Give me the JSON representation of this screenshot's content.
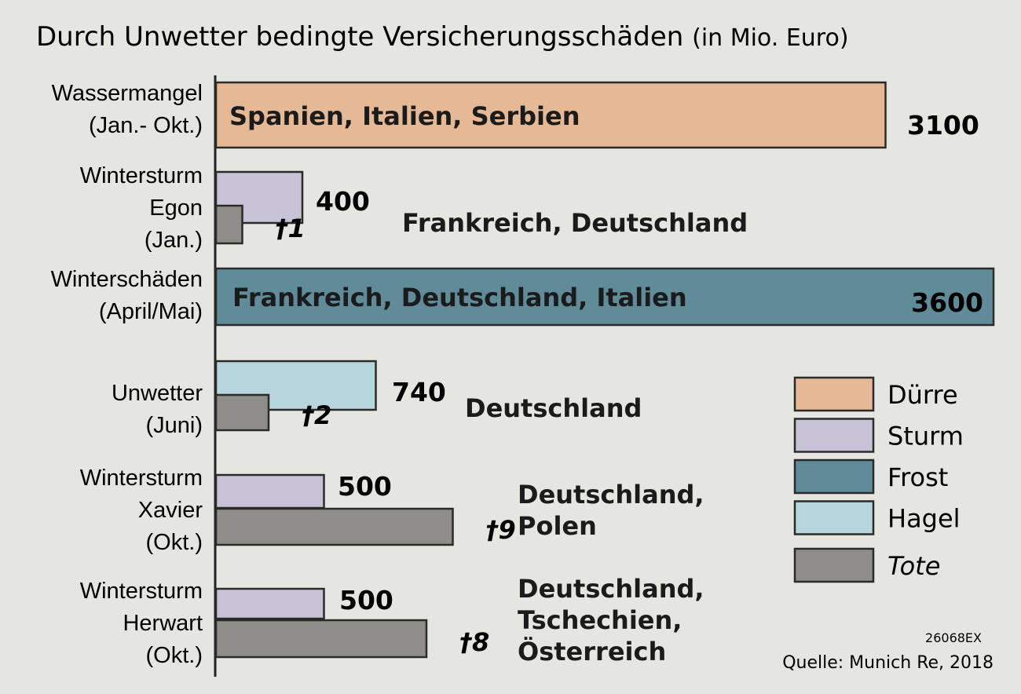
{
  "chart_data": {
    "type": "bar",
    "title": "Durch Unwetter bedingte Versicherungsschäden",
    "unit_note": "(in Mio. Euro)",
    "events": [
      {
        "label_lines": [
          "Wassermangel",
          "(Jan.- Okt.)"
        ],
        "category": "Dürre",
        "value": 3100,
        "value_label": "3100",
        "countries": [
          "Spanien, Italien, Serbien"
        ],
        "deaths": null
      },
      {
        "label_lines": [
          "Wintersturm",
          "Egon",
          "(Jan.)"
        ],
        "category": "Sturm",
        "value": 400,
        "value_label": "400",
        "countries": [
          "Frankreich, Deutschland"
        ],
        "deaths": 1
      },
      {
        "label_lines": [
          "Winterschäden",
          "(April/Mai)"
        ],
        "category": "Frost",
        "value": 3600,
        "value_label": "3600",
        "countries": [
          "Frankreich, Deutschland, Italien"
        ],
        "deaths": null
      },
      {
        "label_lines": [
          "Unwetter",
          "(Juni)"
        ],
        "category": "Hagel",
        "value": 740,
        "value_label": "740",
        "countries": [
          "Deutschland"
        ],
        "deaths": 2
      },
      {
        "label_lines": [
          "Wintersturm",
          "Xavier",
          "(Okt.)"
        ],
        "category": "Sturm",
        "value": 500,
        "value_label": "500",
        "countries": [
          "Deutschland,",
          "Polen"
        ],
        "deaths": 9
      },
      {
        "label_lines": [
          "Wintersturm",
          "Herwart",
          "(Okt.)"
        ],
        "category": "Sturm",
        "value": 500,
        "value_label": "500",
        "countries": [
          "Deutschland,",
          "Tschechien,",
          "Österreich"
        ],
        "deaths": 8
      }
    ],
    "death_marker": "†",
    "legend": [
      {
        "name": "Dürre",
        "color": "#e5b896",
        "italic": false
      },
      {
        "name": "Sturm",
        "color": "#c7c2d6",
        "italic": false
      },
      {
        "name": "Frost",
        "color": "#5f8c98",
        "italic": false
      },
      {
        "name": "Hagel",
        "color": "#b7d5dc",
        "italic": false
      },
      {
        "name": "Tote",
        "color": "#8f8d88",
        "italic": true
      }
    ],
    "legend_placement": "right",
    "grid": false,
    "code": "26068EX",
    "source": "Quelle: Munich Re, 2018"
  }
}
